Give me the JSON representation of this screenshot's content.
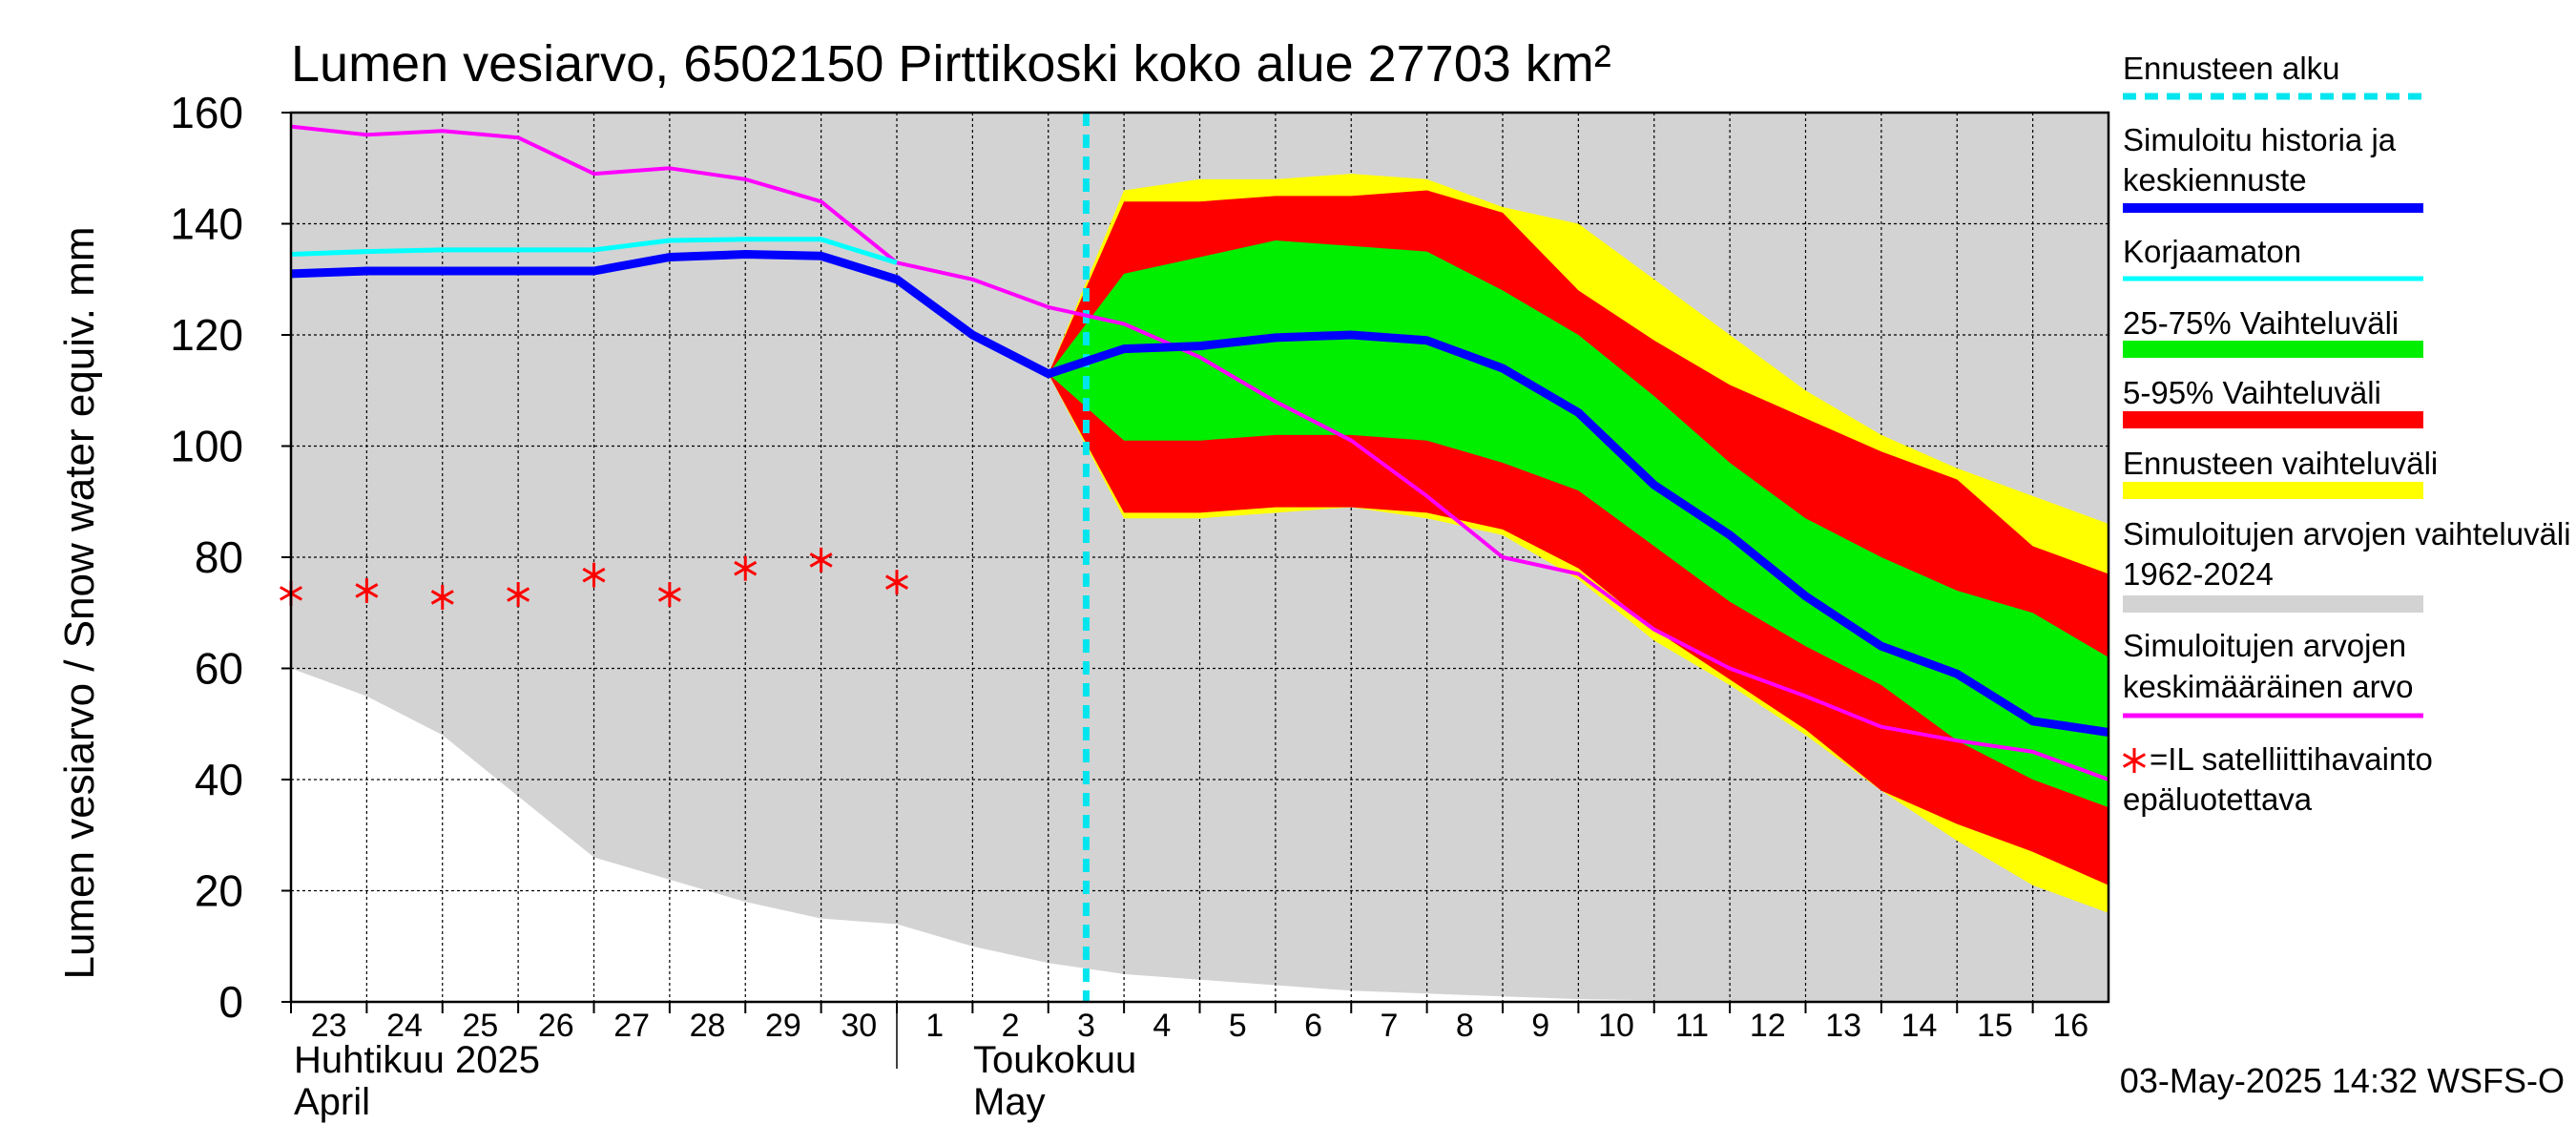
{
  "chart_data": {
    "type": "area",
    "title": "Lumen vesiarvo, 6502150 Pirttikoski koko alue 27703 km²",
    "ylabel": "Lumen vesiarvo / Snow water equiv.    mm",
    "ylim": [
      0,
      160
    ],
    "yticks": [
      0,
      20,
      40,
      60,
      80,
      100,
      120,
      140,
      160
    ],
    "x_days": [
      "23",
      "24",
      "25",
      "26",
      "27",
      "28",
      "29",
      "30",
      "1",
      "2",
      "3",
      "4",
      "5",
      "6",
      "7",
      "8",
      "9",
      "10",
      "11",
      "12",
      "13",
      "14",
      "15",
      "16"
    ],
    "month_labels": {
      "april_fi": "Huhtikuu  2025",
      "april_en": "April",
      "may_fi": "Toukokuu",
      "may_en": "May"
    },
    "timestamp": "03-May-2025 14:32 WSFS-O",
    "forecast_start_day": 10.5,
    "historical_range": {
      "x": [
        0,
        1,
        2,
        3,
        4,
        5,
        6,
        7,
        8,
        9,
        10,
        11,
        12,
        13,
        14,
        15,
        16,
        17,
        18,
        19,
        20,
        21,
        22,
        23,
        24
      ],
      "lower": [
        60,
        55,
        48,
        37,
        26,
        22,
        18,
        15,
        14,
        10,
        7,
        5,
        4,
        3,
        2,
        1.5,
        1,
        0.5,
        0.3,
        0.2,
        0.1,
        0,
        0,
        0,
        0
      ],
      "upper": [
        160,
        160,
        160,
        160,
        160,
        160,
        160,
        160,
        160,
        160,
        160,
        160,
        160,
        160,
        160,
        160,
        160,
        160,
        160,
        160,
        160,
        160,
        160,
        160,
        160
      ]
    },
    "forecast_range": {
      "x": [
        10,
        11,
        12,
        13,
        14,
        15,
        16,
        17,
        18,
        19,
        20,
        21,
        22,
        23,
        24
      ],
      "lower": [
        113,
        87,
        87,
        88,
        89,
        87,
        84,
        76,
        65,
        57,
        48,
        38,
        29,
        21,
        16
      ],
      "upper": [
        113,
        146,
        148,
        148,
        149,
        148,
        143,
        140,
        130,
        120,
        110,
        102,
        96,
        91,
        86
      ]
    },
    "band_5_95": {
      "x": [
        10,
        11,
        12,
        13,
        14,
        15,
        16,
        17,
        18,
        19,
        20,
        21,
        22,
        23,
        24
      ],
      "lower": [
        113,
        88,
        88,
        89,
        89,
        88,
        85,
        78,
        67,
        58,
        49,
        38,
        32,
        27,
        21
      ],
      "upper": [
        113,
        144,
        144,
        145,
        145,
        146,
        142,
        128,
        119,
        111,
        105,
        99,
        94,
        82,
        77
      ]
    },
    "band_25_75": {
      "x": [
        10,
        11,
        12,
        13,
        14,
        15,
        16,
        17,
        18,
        19,
        20,
        21,
        22,
        23,
        24
      ],
      "lower": [
        113,
        101,
        101,
        102,
        102,
        101,
        97,
        92,
        82,
        72,
        64,
        57,
        47,
        40,
        35
      ],
      "upper": [
        113,
        131,
        134,
        137,
        136,
        135,
        128,
        120,
        109,
        97,
        87,
        80,
        74,
        70,
        62
      ]
    },
    "series": [
      {
        "name": "Simuloitujen arvojen keskimääräinen arvo",
        "color": "#ff00ff",
        "x": [
          0,
          1,
          2,
          3,
          4,
          5,
          6,
          7,
          8,
          9,
          10,
          11,
          12,
          13,
          14,
          15,
          16,
          17,
          18,
          19,
          20,
          21,
          22,
          23,
          24
        ],
        "values": [
          157.5,
          156,
          156.7,
          155.5,
          149,
          150,
          148,
          144,
          133,
          130,
          125,
          122,
          116,
          108,
          101,
          91,
          80,
          77,
          67,
          60,
          55,
          49.5,
          47,
          45,
          40
        ]
      },
      {
        "name": "Korjaamaton",
        "color": "#00ffff",
        "x": [
          0,
          1,
          2,
          3,
          4,
          5,
          6,
          7,
          8
        ],
        "values": [
          134.5,
          135,
          135.3,
          135.3,
          135.3,
          137,
          137.2,
          137.2,
          133
        ]
      },
      {
        "name": "Simuloitu historia ja keskiennuste",
        "color": "#0000ff",
        "x": [
          0,
          1,
          2,
          3,
          4,
          5,
          6,
          7,
          8,
          9,
          10,
          11,
          12,
          13,
          14,
          15,
          16,
          17,
          18,
          19,
          20,
          21,
          22,
          23,
          24
        ],
        "values": [
          131,
          131.5,
          131.5,
          131.5,
          131.5,
          134,
          134.5,
          134.2,
          130,
          120,
          113,
          117.5,
          118,
          119.5,
          120,
          119,
          114,
          106,
          93,
          84,
          73,
          64,
          59,
          50.5,
          48.5
        ]
      }
    ],
    "satellite_points": {
      "name": "=IL satelliittihavainto epäluotettava",
      "color": "#ff0000",
      "x": [
        0,
        1,
        2,
        3,
        4,
        5,
        6,
        7,
        8
      ],
      "values": [
        73.5,
        74,
        72.8,
        73.3,
        76.8,
        73.3,
        78,
        79.5,
        75.5
      ]
    },
    "legend": [
      {
        "label": "Ennusteen alku",
        "color": "#00e5ee",
        "style": "dashed"
      },
      {
        "label": "Simuloitu historia ja keskiennuste",
        "color": "#0000ff",
        "style": "thick"
      },
      {
        "label": "Korjaamaton",
        "color": "#00ffff",
        "style": "thin"
      },
      {
        "label": "25-75% Vaihteluväli",
        "color": "#00ee00",
        "style": "band"
      },
      {
        "label": "5-95% Vaihteluväli",
        "color": "#ff0000",
        "style": "band"
      },
      {
        "label": "Ennusteen vaihteluväli",
        "color": "#ffff00",
        "style": "band"
      },
      {
        "label": "Simuloitujen arvojen vaihteluväli 1962-2024",
        "color": "#d3d3d3",
        "style": "band"
      },
      {
        "label": "Simuloitujen arvojen keskimääräinen arvo",
        "color": "#ff00ff",
        "style": "thin"
      },
      {
        "label": "=IL satelliittihavainto epäluotettava",
        "color": "#ff0000",
        "style": "star"
      }
    ],
    "colors": {
      "historical": "#d3d3d3",
      "forecast_range": "#ffff00",
      "band_5_95": "#ff0000",
      "band_25_75": "#00ee00",
      "forecast_start": "#00e5ee"
    }
  }
}
